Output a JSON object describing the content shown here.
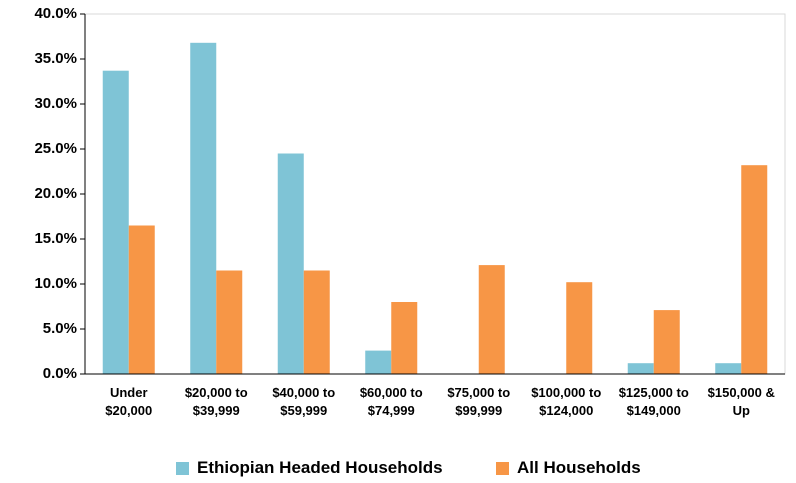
{
  "chart_data": {
    "type": "bar",
    "categories": [
      "Under $20,000",
      "$20,000 to $39,999",
      "$40,000 to $59,999",
      "$60,000 to $74,999",
      "$75,000 to $99,999",
      "$100,000 to $124,000",
      "$125,000 to $149,000",
      "$150,000 & Up"
    ],
    "series": [
      {
        "name": "Ethiopian Headed Households",
        "color": "#7fc4d6",
        "values": [
          33.7,
          36.8,
          24.5,
          2.6,
          0,
          0,
          1.2,
          1.2
        ]
      },
      {
        "name": "All Households",
        "color": "#f79646",
        "values": [
          16.5,
          11.5,
          11.5,
          8.0,
          12.1,
          10.2,
          7.1,
          23.2
        ]
      }
    ],
    "ylim": [
      0,
      40
    ],
    "yticks": [
      {
        "value": 0,
        "label": "0.0%"
      },
      {
        "value": 5,
        "label": "5.0%"
      },
      {
        "value": 10,
        "label": "10.0%"
      },
      {
        "value": 15,
        "label": "15.0%"
      },
      {
        "value": 20,
        "label": "20.0%"
      },
      {
        "value": 25,
        "label": "25.0%"
      },
      {
        "value": 30,
        "label": "30.0%"
      },
      {
        "value": 35,
        "label": "35.0%"
      },
      {
        "value": 40,
        "label": "40.0%"
      }
    ],
    "legend": "bottom"
  }
}
